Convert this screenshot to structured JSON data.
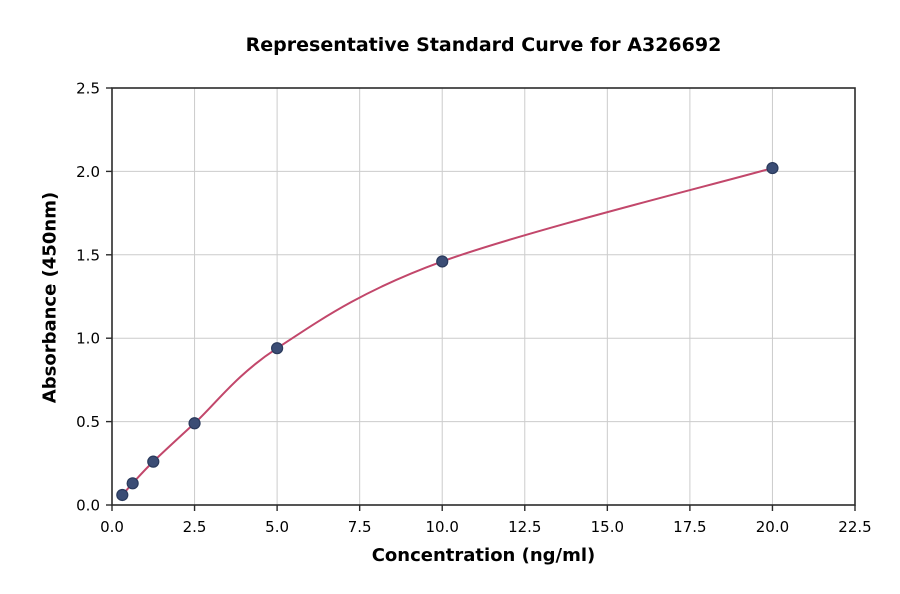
{
  "chart_data": {
    "type": "scatter",
    "title": "Representative Standard Curve for A326692",
    "xlabel": "Concentration (ng/ml)",
    "ylabel": "Absorbance (450nm)",
    "xlim": [
      0,
      22.5
    ],
    "ylim": [
      0,
      2.5
    ],
    "x_ticks": [
      0.0,
      2.5,
      5.0,
      7.5,
      10.0,
      12.5,
      15.0,
      17.5,
      20.0,
      22.5
    ],
    "y_ticks": [
      0.0,
      0.5,
      1.0,
      1.5,
      2.0,
      2.5
    ],
    "grid": true,
    "legend_position": "none",
    "points": [
      {
        "x": 0.3125,
        "y": 0.06
      },
      {
        "x": 0.625,
        "y": 0.13
      },
      {
        "x": 1.25,
        "y": 0.26
      },
      {
        "x": 2.5,
        "y": 0.49
      },
      {
        "x": 5.0,
        "y": 0.94
      },
      {
        "x": 10.0,
        "y": 1.46
      },
      {
        "x": 20.0,
        "y": 2.02
      }
    ],
    "curve_color": "#c2476b",
    "marker_color": "#3b4d75",
    "marker_edge_color": "#2a3a5c",
    "grid_color": "#cccccc",
    "frame_color": "#2b2b2b"
  }
}
